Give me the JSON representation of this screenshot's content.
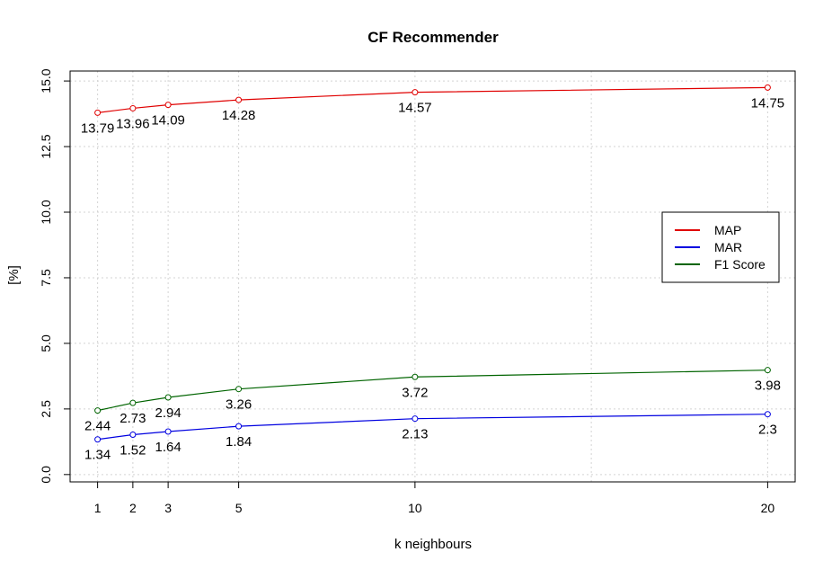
{
  "chart_data": {
    "type": "line",
    "title": "CF Recommender",
    "xlabel": "k neighbours",
    "ylabel": "[%]",
    "x": [
      1,
      2,
      3,
      5,
      10,
      20
    ],
    "x_tick_labels": [
      "1",
      "2",
      "3",
      "5",
      "10",
      "20"
    ],
    "y_tick_labels": [
      "0.0",
      "2.5",
      "5.0",
      "7.5",
      "10.0",
      "12.5",
      "15.0"
    ],
    "xlim": [
      0.22,
      20.78
    ],
    "ylim": [
      -0.28,
      15.38
    ],
    "grid": true,
    "legend_position": "right",
    "series": [
      {
        "name": "MAP",
        "color": "#e00000",
        "values": [
          13.79,
          13.96,
          14.09,
          14.28,
          14.57,
          14.75
        ],
        "labels": [
          "13.79",
          "13.96",
          "14.09",
          "14.28",
          "14.57",
          "14.75"
        ]
      },
      {
        "name": "MAR",
        "color": "#0000e0",
        "values": [
          1.34,
          1.52,
          1.64,
          1.84,
          2.13,
          2.3
        ],
        "labels": [
          "1.34",
          "1.52",
          "1.64",
          "1.84",
          "2.13",
          "2.3"
        ]
      },
      {
        "name": "F1 Score",
        "color": "#006400",
        "values": [
          2.44,
          2.73,
          2.94,
          3.26,
          3.72,
          3.98
        ],
        "labels": [
          "2.44",
          "2.73",
          "2.94",
          "3.26",
          "3.72",
          "3.98"
        ]
      }
    ]
  }
}
